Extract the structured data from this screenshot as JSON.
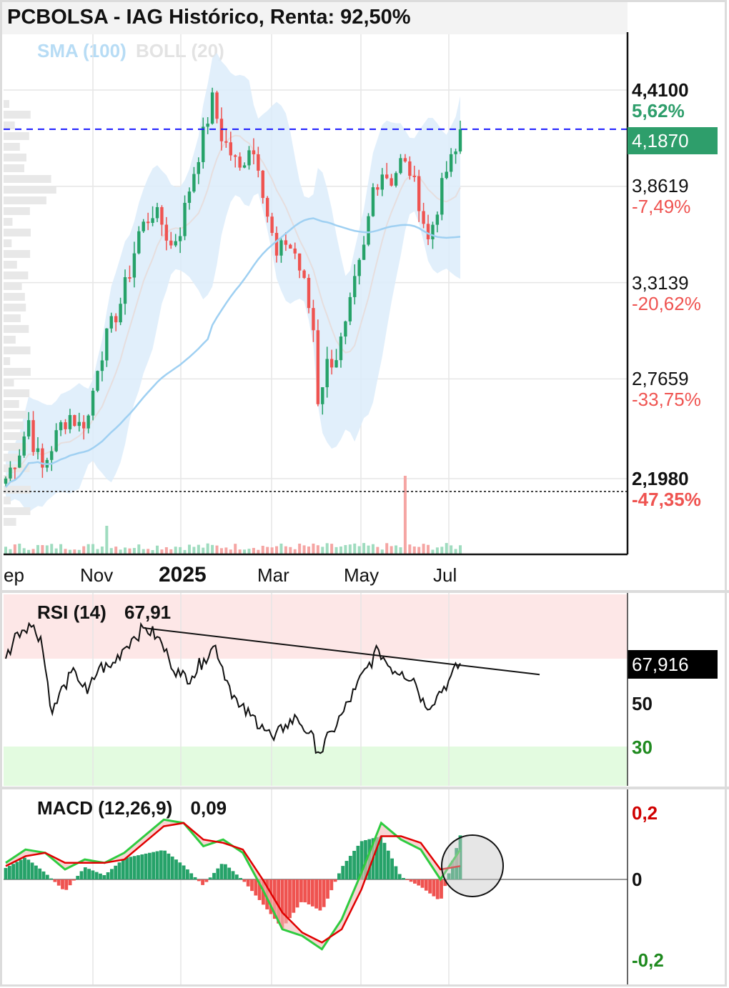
{
  "header": {
    "title": "PCBOLSA - IAG Histórico, Renta: 92,50%",
    "sma_label": "SMA (100)",
    "boll_label": "BOLL (20)"
  },
  "price_axis": [
    {
      "price": "4,4100",
      "pct": "5,62%",
      "bold": true,
      "pct_color": "#2e9e6b"
    },
    {
      "price": "3,8619",
      "pct": "-7,49%",
      "bold": false,
      "pct_color": "#ef5350"
    },
    {
      "price": "3,3139",
      "pct": "-20,62%",
      "bold": false,
      "pct_color": "#ef5350"
    },
    {
      "price": "2,7659",
      "pct": "-33,75%",
      "bold": false,
      "pct_color": "#ef5350"
    },
    {
      "price": "2,1980",
      "pct": "-47,35%",
      "bold": true,
      "pct_color": "#ef5350"
    }
  ],
  "current_price": "4,1870",
  "x_axis_labels": [
    "ep",
    "Nov",
    "2025",
    "Mar",
    "May",
    "Jul"
  ],
  "rsi": {
    "label": "RSI (14)",
    "value": "67,91",
    "current": "67,916",
    "levels": [
      "50",
      "30"
    ]
  },
  "macd": {
    "label": "MACD (12,26,9)",
    "value": "0,09",
    "levels": [
      "0,2",
      "0",
      "-0,2"
    ]
  },
  "colors": {
    "up": "#26a269",
    "down": "#ef5350",
    "boll_fill": "#dcecfa",
    "sma": "#9fd0f2",
    "current_tag": "#2e9e6b",
    "dashed_line": "#1a1aff"
  },
  "chart_data": [
    {
      "type": "candlestick",
      "title": "PCBOLSA - IAG Histórico, Renta: 92,50%",
      "x": [
        "ep",
        "Nov",
        "2025",
        "Mar",
        "May",
        "Jul"
      ],
      "y_ticks": [
        4.41,
        3.8619,
        3.3139,
        2.7659,
        2.198
      ],
      "ylim": [
        1.95,
        4.78
      ],
      "approx_close_path": [
        [
          0,
          2.2
        ],
        [
          3,
          2.36
        ],
        [
          5,
          2.53
        ],
        [
          6,
          2.4
        ],
        [
          8,
          2.25
        ],
        [
          10,
          2.38
        ],
        [
          12,
          2.5
        ],
        [
          14,
          2.56
        ],
        [
          16,
          2.5
        ],
        [
          18,
          2.55
        ],
        [
          20,
          2.85
        ],
        [
          22,
          3.0
        ],
        [
          25,
          3.2
        ],
        [
          27,
          3.38
        ],
        [
          29,
          3.6
        ],
        [
          32,
          3.72
        ],
        [
          34,
          3.65
        ],
        [
          36,
          3.52
        ],
        [
          38,
          3.62
        ],
        [
          40,
          3.85
        ],
        [
          42,
          4.05
        ],
        [
          45,
          4.35
        ],
        [
          47,
          4.15
        ],
        [
          49,
          4.05
        ],
        [
          51,
          3.95
        ],
        [
          53,
          4.1
        ],
        [
          55,
          4.0
        ],
        [
          57,
          3.7
        ],
        [
          59,
          3.45
        ],
        [
          61,
          3.55
        ],
        [
          63,
          3.48
        ],
        [
          65,
          3.3
        ],
        [
          67,
          3.05
        ],
        [
          68,
          2.65
        ],
        [
          70,
          2.85
        ],
        [
          72,
          2.9
        ],
        [
          74,
          3.05
        ],
        [
          76,
          3.3
        ],
        [
          78,
          3.5
        ],
        [
          80,
          3.85
        ],
        [
          82,
          3.95
        ],
        [
          84,
          3.9
        ],
        [
          86,
          4.0
        ],
        [
          88,
          3.95
        ],
        [
          90,
          3.78
        ],
        [
          92,
          3.55
        ],
        [
          94,
          3.75
        ],
        [
          96,
          3.95
        ],
        [
          98,
          4.05
        ],
        [
          99,
          4.187
        ]
      ],
      "last": 4.187,
      "overlays": [
        "SMA (100)",
        "BOLL (20)"
      ]
    },
    {
      "type": "line",
      "title": "RSI (14)",
      "ylim": [
        20,
        95
      ],
      "levels": [
        70,
        50,
        30
      ],
      "values": [
        70,
        82,
        86,
        80,
        45,
        58,
        64,
        54,
        66,
        66,
        74,
        80,
        84,
        80,
        70,
        62,
        62,
        70,
        76,
        60,
        48,
        44,
        40,
        33,
        40,
        43,
        36,
        27,
        37,
        46,
        56,
        66,
        74,
        66,
        64,
        61,
        48,
        53,
        60,
        67.916
      ],
      "trendline": [
        [
          30,
          84
        ],
        [
          100,
          66
        ]
      ]
    },
    {
      "type": "line",
      "title": "MACD (12,26,9)",
      "ylim": [
        -0.26,
        0.26
      ],
      "y_ticks": [
        0.2,
        0,
        -0.2
      ],
      "macd": [
        0.05,
        0.09,
        0.08,
        0.03,
        0.06,
        0.05,
        0.08,
        0.13,
        0.18,
        0.17,
        0.1,
        0.12,
        0.08,
        -0.03,
        -0.15,
        -0.17,
        -0.21,
        -0.12,
        0.02,
        0.17,
        0.12,
        0.09,
        0.0,
        0.09
      ],
      "signal": [
        0.04,
        0.07,
        0.08,
        0.05,
        0.05,
        0.05,
        0.06,
        0.11,
        0.16,
        0.17,
        0.12,
        0.11,
        0.09,
        0.0,
        -0.1,
        -0.16,
        -0.19,
        -0.15,
        -0.03,
        0.13,
        0.13,
        0.11,
        0.03,
        0.04
      ]
    }
  ]
}
